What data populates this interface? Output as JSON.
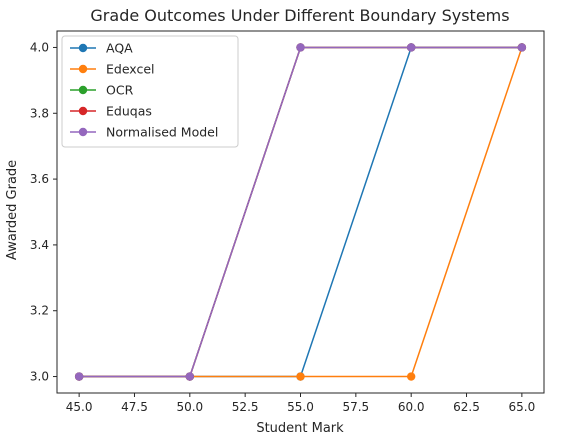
{
  "chart_data": {
    "type": "line",
    "title": "Grade Outcomes Under Different Boundary Systems",
    "xlabel": "Student Mark",
    "ylabel": "Awarded Grade",
    "xlim": [
      44.0,
      66.0
    ],
    "ylim": [
      2.95,
      4.05
    ],
    "x": [
      45,
      50,
      55,
      60,
      65
    ],
    "x_ticks": [
      45.0,
      47.5,
      50.0,
      52.5,
      55.0,
      57.5,
      60.0,
      62.5,
      65.0
    ],
    "x_tick_labels": [
      "45.0",
      "47.5",
      "50.0",
      "52.5",
      "55.0",
      "57.5",
      "60.0",
      "62.5",
      "65.0"
    ],
    "y_ticks": [
      3.0,
      3.2,
      3.4,
      3.6,
      3.8,
      4.0
    ],
    "y_tick_labels": [
      "3.0",
      "3.2",
      "3.4",
      "3.6",
      "3.8",
      "4.0"
    ],
    "grid": false,
    "legend_position": "top-left",
    "series": [
      {
        "name": "AQA",
        "color": "#1f77b4",
        "values": [
          3,
          3,
          3,
          4,
          4
        ]
      },
      {
        "name": "Edexcel",
        "color": "#ff7f0e",
        "values": [
          3,
          3,
          3,
          3,
          4
        ]
      },
      {
        "name": "OCR",
        "color": "#2ca02c",
        "values": [
          3,
          3,
          4,
          4,
          4
        ]
      },
      {
        "name": "Eduqas",
        "color": "#d62728",
        "values": [
          3,
          3,
          4,
          4,
          4
        ]
      },
      {
        "name": "Normalised Model",
        "color": "#9467bd",
        "values": [
          3,
          3,
          4,
          4,
          4
        ]
      }
    ]
  }
}
